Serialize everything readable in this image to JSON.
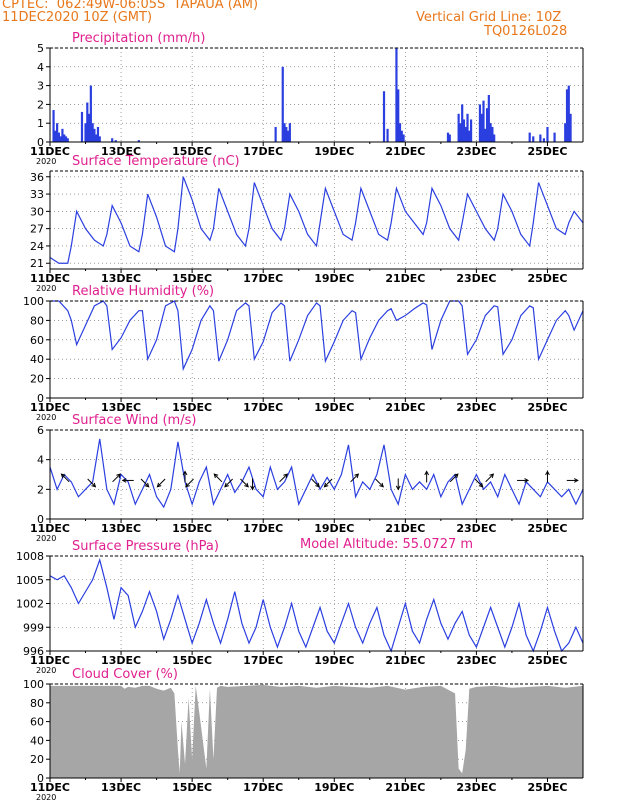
{
  "header": {
    "line1": "CPTEC:  062:49W-06:05S  TAPAUA (AM)",
    "line2": "11DEC2020 10Z (GMT)",
    "grid_note": "Vertical Grid Line: 10Z",
    "code": "TQ0126L028",
    "model_altitude": "Model Altitude: 55.0727 m"
  },
  "colors": {
    "series": "#2b3fe0",
    "cloud": "#a6a6a6",
    "header": "#e8781c",
    "title": "#e0208f"
  },
  "x_axis": {
    "labels": [
      "11DEC",
      "13DEC",
      "15DEC",
      "17DEC",
      "19DEC",
      "21DEC",
      "23DEC",
      "25DEC"
    ],
    "year_label": "2020"
  },
  "chart_data": [
    {
      "type": "bar",
      "title": "Precipitation (mm/h)",
      "ylim": [
        0,
        5
      ],
      "yticks": [
        "0",
        "1",
        "2",
        "3",
        "4",
        "5"
      ],
      "x_unit": "days since 11DEC 10Z",
      "x": [
        0.1,
        0.15,
        0.2,
        0.25,
        0.3,
        0.35,
        0.4,
        0.45,
        0.5,
        0.9,
        1.0,
        1.05,
        1.1,
        1.15,
        1.2,
        1.25,
        1.3,
        1.35,
        1.4,
        1.75,
        1.85,
        2.5,
        6.35,
        6.55,
        6.6,
        6.65,
        6.7,
        6.75,
        9.4,
        9.5,
        9.75,
        9.8,
        9.85,
        9.9,
        9.95,
        11.2,
        11.25,
        11.5,
        11.55,
        11.6,
        11.65,
        11.7,
        11.75,
        11.8,
        11.85,
        12.1,
        12.15,
        12.2,
        12.25,
        12.3,
        12.35,
        12.4,
        12.45,
        12.5,
        13.5,
        13.6,
        13.8,
        13.9,
        14.0,
        14.2,
        14.5,
        14.55,
        14.6,
        14.65
      ],
      "values": [
        1.7,
        0.6,
        1.0,
        0.5,
        0.3,
        0.7,
        0.4,
        0.3,
        0.2,
        1.6,
        1.0,
        2.1,
        1.5,
        3.0,
        1.0,
        0.7,
        0.4,
        0.8,
        0.3,
        0.2,
        0.1,
        0.1,
        0.8,
        4.0,
        1.0,
        0.8,
        0.6,
        1.0,
        2.7,
        0.7,
        5.0,
        2.8,
        1.0,
        0.6,
        0.4,
        0.5,
        0.4,
        1.5,
        1.0,
        2.0,
        1.2,
        0.8,
        1.5,
        0.6,
        1.2,
        2.0,
        1.5,
        2.2,
        0.7,
        1.8,
        2.5,
        1.0,
        0.8,
        0.4,
        0.5,
        0.3,
        0.4,
        0.2,
        0.8,
        0.5,
        1.0,
        2.8,
        3.0,
        1.5
      ]
    },
    {
      "type": "line",
      "title": "Surface Temperature (nC)",
      "ylim": [
        20,
        37
      ],
      "yticks": [
        "21",
        "24",
        "27",
        "30",
        "33",
        "36"
      ],
      "x": [
        0,
        0.25,
        0.5,
        0.6,
        0.75,
        1.0,
        1.25,
        1.5,
        1.6,
        1.75,
        2.0,
        2.25,
        2.5,
        2.6,
        2.75,
        3.0,
        3.25,
        3.5,
        3.6,
        3.75,
        4.0,
        4.25,
        4.5,
        4.6,
        4.75,
        5.0,
        5.25,
        5.5,
        5.6,
        5.75,
        6.0,
        6.25,
        6.5,
        6.6,
        6.75,
        7.0,
        7.25,
        7.5,
        7.6,
        7.75,
        8.0,
        8.25,
        8.5,
        8.6,
        8.75,
        9.0,
        9.25,
        9.5,
        9.6,
        9.75,
        10.0,
        10.25,
        10.5,
        10.6,
        10.75,
        11.0,
        11.25,
        11.5,
        11.6,
        11.75,
        12.0,
        12.25,
        12.5,
        12.6,
        12.75,
        13.0,
        13.25,
        13.5,
        13.6,
        13.75,
        14.0,
        14.25,
        14.5,
        14.6,
        14.75,
        15.0
      ],
      "values": [
        22,
        21,
        21,
        24,
        30,
        27,
        25,
        24,
        26,
        31,
        28,
        24,
        23,
        26,
        33,
        29,
        24,
        23,
        27,
        36,
        32,
        27,
        25,
        27,
        34,
        30,
        26,
        24,
        27,
        35,
        31,
        27,
        25,
        27,
        33,
        30,
        26,
        24,
        28,
        34,
        30,
        26,
        25,
        28,
        34,
        30,
        26,
        25,
        28,
        34,
        30,
        28,
        26,
        28,
        34,
        31,
        27,
        25,
        28,
        33,
        30,
        27,
        25,
        27,
        33,
        30,
        26,
        24,
        28,
        35,
        31,
        27,
        26,
        28,
        30,
        28
      ]
    },
    {
      "type": "line",
      "title": "Relative Humidity (%)",
      "ylim": [
        0,
        100
      ],
      "yticks": [
        "0",
        "20",
        "40",
        "60",
        "80",
        "100"
      ],
      "x": [
        0,
        0.25,
        0.5,
        0.6,
        0.75,
        1.0,
        1.25,
        1.5,
        1.6,
        1.75,
        2.0,
        2.25,
        2.5,
        2.6,
        2.75,
        3.0,
        3.25,
        3.5,
        3.6,
        3.75,
        4.0,
        4.25,
        4.5,
        4.6,
        4.75,
        5.0,
        5.25,
        5.5,
        5.6,
        5.75,
        6.0,
        6.25,
        6.5,
        6.6,
        6.75,
        7.0,
        7.25,
        7.5,
        7.6,
        7.75,
        8.0,
        8.25,
        8.5,
        8.6,
        8.75,
        9.0,
        9.25,
        9.5,
        9.6,
        9.75,
        10.0,
        10.25,
        10.5,
        10.6,
        10.75,
        11.0,
        11.25,
        11.5,
        11.6,
        11.75,
        12.0,
        12.25,
        12.5,
        12.6,
        12.75,
        13.0,
        13.25,
        13.5,
        13.6,
        13.75,
        14.0,
        14.25,
        14.5,
        14.6,
        14.75,
        15.0
      ],
      "values": [
        100,
        100,
        90,
        80,
        55,
        75,
        95,
        100,
        95,
        50,
        62,
        80,
        90,
        90,
        40,
        60,
        95,
        100,
        90,
        30,
        50,
        80,
        95,
        90,
        38,
        60,
        90,
        98,
        95,
        40,
        58,
        88,
        98,
        95,
        38,
        60,
        85,
        98,
        95,
        38,
        58,
        80,
        90,
        88,
        40,
        62,
        80,
        90,
        92,
        80,
        85,
        92,
        98,
        96,
        50,
        80,
        100,
        100,
        95,
        45,
        60,
        85,
        95,
        94,
        45,
        60,
        85,
        95,
        93,
        40,
        60,
        80,
        90,
        85,
        70,
        90
      ]
    },
    {
      "type": "line",
      "title": "Surface Wind (m/s)",
      "ylim": [
        0,
        6
      ],
      "yticks": [
        "0",
        "2",
        "4",
        "6"
      ],
      "x": [
        0,
        0.2,
        0.4,
        0.6,
        0.8,
        1.0,
        1.2,
        1.4,
        1.6,
        1.8,
        2.0,
        2.2,
        2.4,
        2.6,
        2.8,
        3.0,
        3.2,
        3.4,
        3.6,
        3.8,
        4.0,
        4.2,
        4.4,
        4.6,
        4.8,
        5.0,
        5.2,
        5.4,
        5.6,
        5.8,
        6.0,
        6.2,
        6.4,
        6.6,
        6.8,
        7.0,
        7.2,
        7.4,
        7.6,
        7.8,
        8.0,
        8.2,
        8.4,
        8.6,
        8.8,
        9.0,
        9.2,
        9.4,
        9.6,
        9.8,
        10.0,
        10.2,
        10.4,
        10.6,
        10.8,
        11.0,
        11.2,
        11.4,
        11.6,
        11.8,
        12.0,
        12.2,
        12.4,
        12.6,
        12.8,
        13.0,
        13.2,
        13.4,
        13.6,
        13.8,
        14.0,
        14.2,
        14.4,
        14.6,
        14.8,
        15.0
      ],
      "values": [
        3.5,
        2.0,
        3.0,
        2.5,
        1.5,
        2.0,
        2.5,
        5.4,
        2.0,
        1.0,
        3.0,
        2.5,
        1.0,
        2.0,
        3.0,
        1.5,
        0.8,
        2.0,
        5.2,
        2.5,
        1.0,
        2.5,
        3.5,
        1.0,
        2.0,
        3.0,
        1.8,
        2.5,
        3.5,
        2.0,
        1.5,
        3.5,
        2.0,
        2.5,
        3.5,
        1.0,
        2.0,
        3.0,
        2.0,
        2.8,
        2.0,
        3.0,
        5.0,
        1.5,
        2.5,
        2.0,
        3.0,
        5.0,
        2.0,
        1.0,
        3.0,
        2.0,
        2.5,
        2.0,
        3.0,
        1.5,
        2.5,
        3.0,
        1.0,
        2.0,
        3.0,
        2.0,
        2.5,
        1.5,
        3.0,
        2.0,
        1.0,
        2.5,
        2.0,
        1.5,
        2.5,
        2.0,
        1.5,
        2.0,
        1.0,
        2.0
      ],
      "arrows": [
        {
          "x": 0.5,
          "dir": "NW"
        },
        {
          "x": 1.1,
          "dir": "SE"
        },
        {
          "x": 1.8,
          "dir": "NE"
        },
        {
          "x": 2.3,
          "dir": "W"
        },
        {
          "x": 2.6,
          "dir": "SE"
        },
        {
          "x": 3.2,
          "dir": "SW"
        },
        {
          "x": 3.8,
          "dir": "N"
        },
        {
          "x": 4.0,
          "dir": "SW"
        },
        {
          "x": 4.8,
          "dir": "NW"
        },
        {
          "x": 5.1,
          "dir": "SW"
        },
        {
          "x": 5.4,
          "dir": "SE"
        },
        {
          "x": 5.7,
          "dir": "S"
        },
        {
          "x": 6.5,
          "dir": "NE"
        },
        {
          "x": 7.4,
          "dir": "SE"
        },
        {
          "x": 7.9,
          "dir": "SW"
        },
        {
          "x": 8.5,
          "dir": "NE"
        },
        {
          "x": 9.2,
          "dir": "SE"
        },
        {
          "x": 9.8,
          "dir": "S"
        },
        {
          "x": 10.6,
          "dir": "N"
        },
        {
          "x": 11.3,
          "dir": "NE"
        },
        {
          "x": 12.0,
          "dir": "SE"
        },
        {
          "x": 12.3,
          "dir": "NE"
        },
        {
          "x": 13.2,
          "dir": "E"
        },
        {
          "x": 14.0,
          "dir": "N"
        },
        {
          "x": 14.6,
          "dir": "E"
        }
      ]
    },
    {
      "type": "line",
      "title": "Surface Pressure (hPa)",
      "ylim": [
        996,
        1008
      ],
      "yticks": [
        "996",
        "999",
        "1002",
        "1005",
        "1008"
      ],
      "x": [
        0,
        0.2,
        0.4,
        0.6,
        0.8,
        1.0,
        1.2,
        1.4,
        1.6,
        1.8,
        2.0,
        2.2,
        2.4,
        2.6,
        2.8,
        3.0,
        3.2,
        3.4,
        3.6,
        3.8,
        4.0,
        4.2,
        4.4,
        4.6,
        4.8,
        5.0,
        5.2,
        5.4,
        5.6,
        5.8,
        6.0,
        6.2,
        6.4,
        6.6,
        6.8,
        7.0,
        7.2,
        7.4,
        7.6,
        7.8,
        8.0,
        8.2,
        8.4,
        8.6,
        8.8,
        9.0,
        9.2,
        9.4,
        9.6,
        9.8,
        10.0,
        10.2,
        10.4,
        10.6,
        10.8,
        11.0,
        11.2,
        11.4,
        11.6,
        11.8,
        12.0,
        12.2,
        12.4,
        12.6,
        12.8,
        13.0,
        13.2,
        13.4,
        13.6,
        13.8,
        14.0,
        14.2,
        14.4,
        14.6,
        14.8,
        15.0
      ],
      "values": [
        1005.5,
        1005,
        1005.5,
        1004,
        1002,
        1003.5,
        1005,
        1007.5,
        1004,
        1000,
        1004,
        1003,
        999,
        1001,
        1003.5,
        1001,
        997.5,
        1000,
        1003,
        1000,
        997,
        999.5,
        1002.5,
        999.5,
        997,
        1000,
        1003.5,
        999.5,
        997,
        999,
        1002.5,
        999,
        996.5,
        999,
        1002,
        998.5,
        996.5,
        999,
        1001.5,
        998.5,
        997,
        999.5,
        1002,
        999,
        997,
        999.5,
        1001.5,
        998,
        996,
        999,
        1002,
        998.5,
        997,
        1000,
        1002.5,
        999.5,
        997.5,
        999.5,
        1001,
        998,
        996.5,
        999,
        1001.5,
        999,
        996.5,
        999,
        1002,
        998,
        996,
        998.5,
        1001.5,
        998.5,
        996,
        997,
        999,
        997
      ]
    },
    {
      "type": "area",
      "title": "Cloud Cover (%)",
      "ylim": [
        0,
        100
      ],
      "yticks": [
        "0",
        "20",
        "40",
        "60",
        "80",
        "100"
      ],
      "x": [
        0,
        2.0,
        2.1,
        2.2,
        2.4,
        2.6,
        2.8,
        3.0,
        3.2,
        3.4,
        3.5,
        3.6,
        3.65,
        3.7,
        3.8,
        3.9,
        4.0,
        4.1,
        4.2,
        4.3,
        4.4,
        4.5,
        4.6,
        4.7,
        4.8,
        5.0,
        5.5,
        6.0,
        6.5,
        7.0,
        7.5,
        8.0,
        8.5,
        9.0,
        9.5,
        10.0,
        10.5,
        11.0,
        11.4,
        11.5,
        11.6,
        11.7,
        11.8,
        12.0,
        12.5,
        13.0,
        13.5,
        14.0,
        14.5,
        15.0
      ],
      "values": [
        98,
        98,
        95,
        97,
        96,
        98,
        98,
        95,
        93,
        96,
        90,
        30,
        5,
        60,
        15,
        85,
        20,
        98,
        70,
        40,
        10,
        95,
        20,
        96,
        98,
        97,
        98,
        99,
        97,
        98,
        96,
        98,
        97,
        96,
        98,
        94,
        97,
        98,
        90,
        10,
        5,
        30,
        95,
        97,
        98,
        96,
        97,
        98,
        96,
        98
      ]
    }
  ]
}
